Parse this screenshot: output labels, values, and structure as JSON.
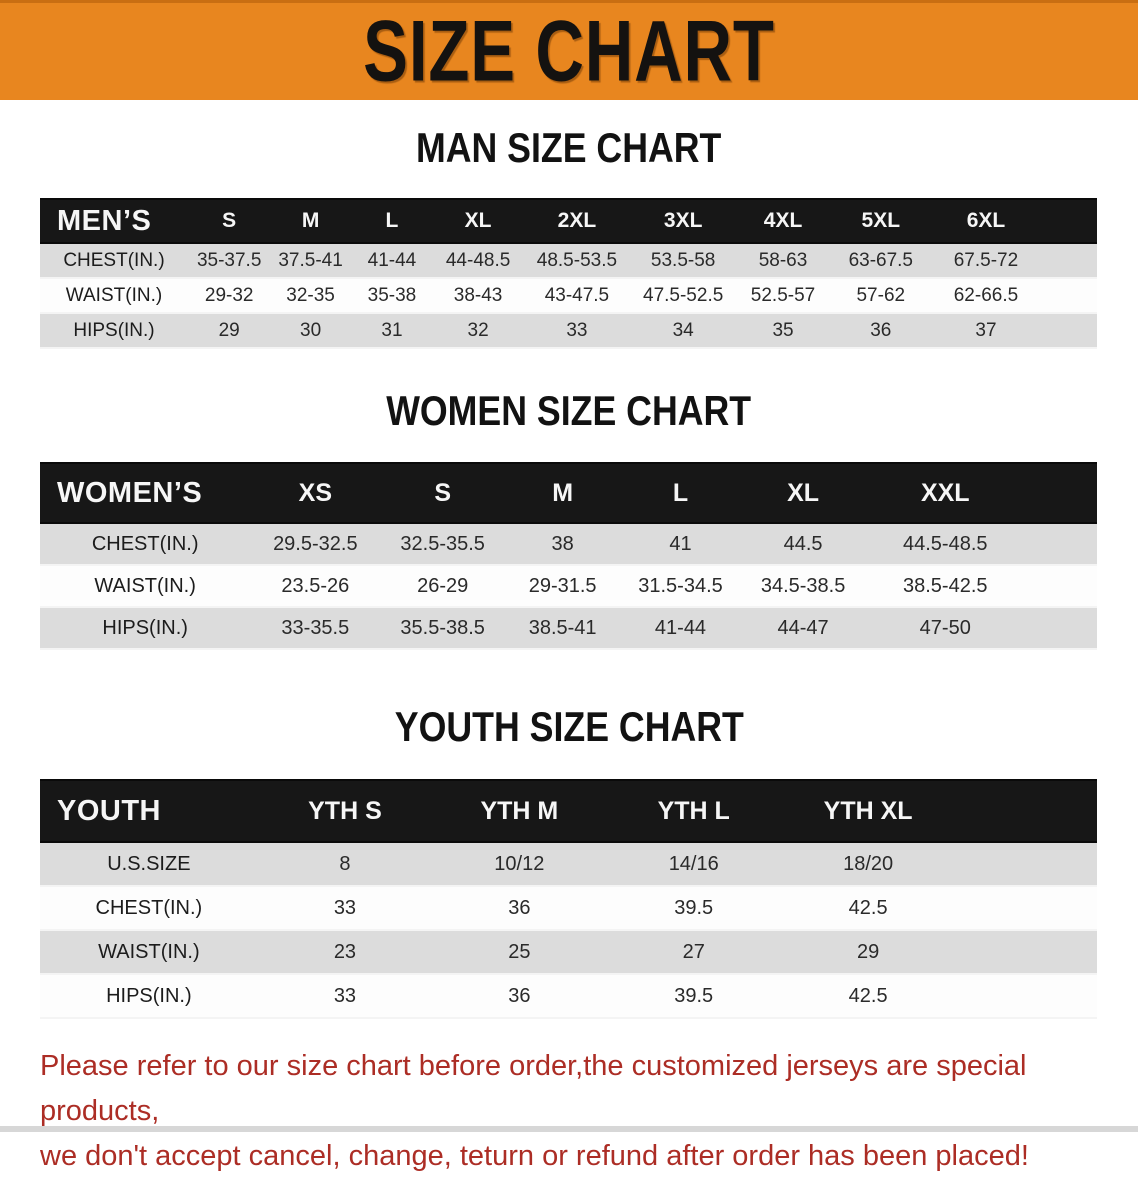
{
  "banner": {
    "title": "SIZE CHART"
  },
  "sections": {
    "men": {
      "heading": "MAN SIZE CHART",
      "table": {
        "header": [
          "MEN’S",
          "S",
          "M",
          "L",
          "XL",
          "2XL",
          "3XL",
          "4XL",
          "5XL",
          "6XL"
        ],
        "rows": [
          [
            "CHEST(IN.)",
            "35-37.5",
            "37.5-41",
            "41-44",
            "44-48.5",
            "48.5-53.5",
            "53.5-58",
            "58-63",
            "63-67.5",
            "67.5-72"
          ],
          [
            "WAIST(IN.)",
            "29-32",
            "32-35",
            "35-38",
            "38-43",
            "43-47.5",
            "47.5-52.5",
            "52.5-57",
            "57-62",
            "62-66.5"
          ],
          [
            "HIPS(IN.)",
            "29",
            "30",
            "31",
            "32",
            "33",
            "34",
            "35",
            "36",
            "37"
          ]
        ]
      }
    },
    "women": {
      "heading": "WOMEN SIZE CHART",
      "table": {
        "header": [
          "WOMEN’S",
          "XS",
          "S",
          "M",
          "L",
          "XL",
          "XXL"
        ],
        "rows": [
          [
            "CHEST(IN.)",
            "29.5-32.5",
            "32.5-35.5",
            "38",
            "41",
            "44.5",
            "44.5-48.5"
          ],
          [
            "WAIST(IN.)",
            "23.5-26",
            "26-29",
            "29-31.5",
            "31.5-34.5",
            "34.5-38.5",
            "38.5-42.5"
          ],
          [
            "HIPS(IN.)",
            "33-35.5",
            "35.5-38.5",
            "38.5-41",
            "41-44",
            "44-47",
            "47-50"
          ]
        ]
      }
    },
    "youth": {
      "heading": "YOUTH SIZE CHART",
      "table": {
        "header": [
          "YOUTH",
          "YTH S",
          "YTH M",
          "YTH L",
          "YTH XL"
        ],
        "rows": [
          [
            "U.S.SIZE",
            "8",
            "10/12",
            "14/16",
            "18/20"
          ],
          [
            "CHEST(IN.)",
            "33",
            "36",
            "39.5",
            "42.5"
          ],
          [
            "WAIST(IN.)",
            "23",
            "25",
            "27",
            "29"
          ],
          [
            "HIPS(IN.)",
            "33",
            "36",
            "39.5",
            "42.5"
          ]
        ]
      }
    }
  },
  "disclaimer": {
    "line1": "Please refer to our size chart before order,the customized jerseys are special products,",
    "line2": "we don't accept cancel, change, teturn or refund after order has been placed!"
  },
  "colors": {
    "banner_orange": "#E8861F",
    "header_black": "#171717",
    "row_gray": "#DCDCDC",
    "disclaimer_red": "#AC2D25"
  }
}
